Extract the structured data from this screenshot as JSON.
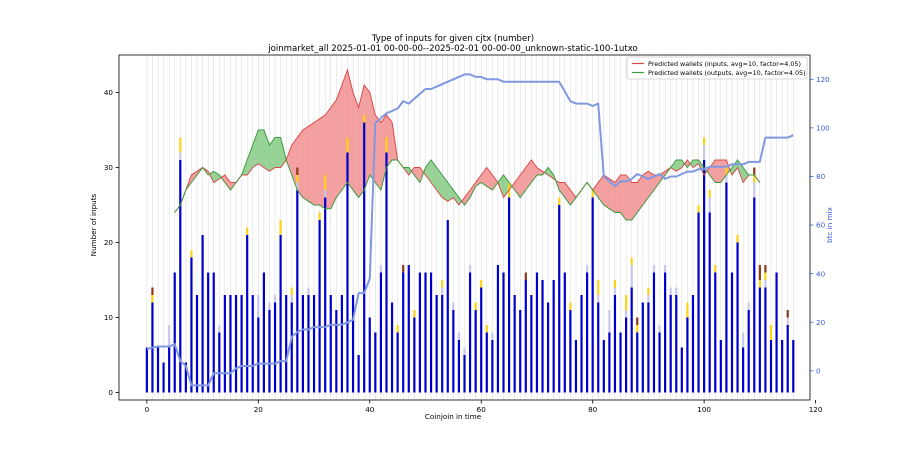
{
  "chart_data": {
    "type": "bar",
    "title": "Type of inputs for given cjtx (number)",
    "subtitle": "joinmarket_all 2025-01-01 00-00-00--2025-02-01 00-00-00_unknown-static-100-1utxo",
    "xlabel": "Coinjoin in time",
    "ylabel": "Number of inputs",
    "y2label": "btc in mix",
    "xlim": [
      -5,
      119
    ],
    "ylim": [
      -1,
      45
    ],
    "y2lim": [
      -12,
      130
    ],
    "xticks": [
      0,
      20,
      40,
      60,
      80,
      100,
      120
    ],
    "yticks": [
      0,
      10,
      20,
      30,
      40
    ],
    "y2ticks": [
      0,
      20,
      40,
      60,
      80,
      100,
      120
    ],
    "grid": "vertical",
    "legend_position": "top-right",
    "colors": {
      "base": "#0000cc",
      "light": "#c8c8ee",
      "yellow": "#ffd21a",
      "brown": "#8b3a1a",
      "inputs_line": "#d94a4a",
      "outputs_line": "#3a9a3a",
      "fill_red": "#f28080",
      "fill_green": "#74c474",
      "btc_line": "#7f98e0",
      "axis2": "#3a5bd9"
    },
    "series": [
      {
        "name": "",
        "values": [
          6,
          12,
          6,
          4,
          6,
          16,
          31,
          4,
          18,
          13,
          21,
          16,
          16,
          8,
          13,
          13,
          13,
          13,
          21,
          13,
          10,
          16,
          11,
          12,
          21,
          13,
          12,
          27,
          13,
          13,
          13,
          23,
          26,
          13,
          11,
          13,
          32,
          13,
          5,
          36,
          10,
          8,
          16,
          32,
          12,
          8,
          16,
          17,
          10,
          16,
          16,
          16,
          13,
          13,
          23,
          11,
          7,
          5,
          16,
          11,
          14,
          8,
          7,
          17,
          16,
          26,
          13,
          11,
          15,
          13,
          16,
          15,
          12,
          15,
          25,
          16,
          11,
          7,
          13,
          16,
          26,
          12,
          7,
          8,
          13,
          8,
          10,
          14,
          8,
          12,
          12,
          16,
          8,
          16,
          13,
          13,
          6,
          10,
          13,
          24,
          31,
          24,
          16,
          7,
          28,
          16,
          20,
          6,
          11,
          26,
          14,
          14,
          7,
          16,
          7,
          9,
          7
        ]
      },
      {
        "name": "",
        "values": [
          0,
          0,
          0,
          0,
          3,
          0,
          1,
          0,
          0,
          0,
          0,
          0,
          0,
          1,
          0,
          0,
          0,
          0,
          0,
          0,
          3,
          0,
          1,
          1,
          0,
          0,
          1,
          1,
          0,
          1,
          0,
          0,
          1,
          0,
          0,
          0,
          0,
          0,
          0,
          0,
          0,
          0,
          1,
          0,
          0,
          0,
          0,
          0,
          0,
          0,
          0,
          0,
          0,
          1,
          0,
          1,
          1,
          1,
          1,
          0,
          0,
          0,
          1,
          0,
          0,
          0,
          0,
          0,
          0,
          0,
          0,
          0,
          0,
          0,
          0,
          0,
          0,
          0,
          0,
          1,
          0,
          1,
          0,
          3,
          1,
          0,
          1,
          3,
          0,
          0,
          1,
          1,
          1,
          1,
          1,
          1,
          0,
          0,
          0,
          0,
          2,
          2,
          0,
          0,
          1,
          0,
          0,
          2,
          1,
          2,
          0,
          1,
          0,
          0,
          0,
          1,
          0
        ]
      },
      {
        "name": "",
        "values": [
          0,
          1,
          0,
          0,
          0,
          0,
          2,
          0,
          1,
          0,
          0,
          0,
          0,
          0,
          0,
          0,
          0,
          0,
          1,
          0,
          0,
          0,
          0,
          0,
          2,
          0,
          1,
          1,
          0,
          0,
          0,
          1,
          2,
          0,
          0,
          0,
          2,
          0,
          0,
          1,
          0,
          0,
          0,
          2,
          0,
          1,
          0,
          0,
          1,
          0,
          0,
          0,
          0,
          1,
          0,
          0,
          0,
          0,
          0,
          1,
          1,
          1,
          0,
          0,
          0,
          2,
          0,
          0,
          0,
          0,
          0,
          0,
          0,
          0,
          1,
          0,
          1,
          0,
          0,
          0,
          1,
          2,
          0,
          0,
          1,
          0,
          2,
          1,
          1,
          0,
          1,
          0,
          0,
          0,
          0,
          0,
          0,
          2,
          0,
          1,
          1,
          1,
          1,
          0,
          1,
          0,
          1,
          0,
          0,
          1,
          1,
          1,
          2,
          0,
          0,
          0,
          0
        ]
      },
      {
        "name": "",
        "values": [
          0,
          1,
          0,
          0,
          0,
          0,
          0,
          0,
          0,
          0,
          0,
          0,
          0,
          0,
          0,
          0,
          0,
          0,
          0,
          0,
          0,
          0,
          0,
          0,
          0,
          0,
          0,
          1,
          0,
          0,
          0,
          0,
          0,
          0,
          0,
          0,
          0,
          0,
          0,
          0,
          0,
          0,
          0,
          0,
          0,
          0,
          1,
          0,
          0,
          0,
          0,
          0,
          0,
          0,
          0,
          0,
          0,
          0,
          0,
          0,
          0,
          0,
          0,
          0,
          0,
          0,
          0,
          0,
          1,
          0,
          0,
          0,
          0,
          0,
          0,
          0,
          0,
          0,
          0,
          0,
          0,
          0,
          0,
          0,
          0,
          0,
          0,
          0,
          1,
          0,
          0,
          0,
          0,
          0,
          0,
          0,
          0,
          0,
          0,
          0,
          0,
          0,
          0,
          0,
          0,
          0,
          0,
          0,
          0,
          1,
          2,
          1,
          0,
          0,
          0,
          1,
          0
        ]
      },
      {
        "name": "Predicted wallets (inputs, avg=10, factor=4.05)",
        "x": [
          5,
          6,
          7,
          8,
          9,
          10,
          11,
          12,
          13,
          14,
          15,
          16,
          17,
          18,
          19,
          20,
          21,
          22,
          23,
          24,
          25,
          26,
          27,
          28,
          29,
          30,
          31,
          32,
          33,
          34,
          35,
          36,
          37,
          38,
          39,
          40,
          41,
          42,
          43,
          44,
          45,
          46,
          47,
          48,
          49,
          50,
          51,
          52,
          53,
          54,
          55,
          56,
          57,
          58,
          59,
          60,
          61,
          62,
          63,
          64,
          65,
          66,
          67,
          68,
          69,
          70,
          71,
          72,
          73,
          74,
          75,
          76,
          77,
          78,
          79,
          80,
          81,
          82,
          83,
          84,
          85,
          86,
          87,
          88,
          89,
          90,
          91,
          92,
          93,
          94,
          95,
          96,
          97,
          98,
          99,
          100,
          101,
          102,
          103,
          104,
          105,
          106,
          107,
          108,
          109,
          110
        ],
        "values": [
          24,
          25,
          27,
          29,
          29.5,
          30,
          29.5,
          28,
          28.5,
          29,
          28,
          28,
          29,
          29,
          30,
          30.5,
          30,
          29.5,
          30,
          30,
          31,
          33,
          34,
          35,
          35.5,
          36,
          36.5,
          37,
          38,
          39,
          41,
          43,
          40,
          38,
          41,
          40,
          37,
          36,
          37,
          36,
          31,
          30,
          29,
          30,
          30,
          29,
          28,
          27,
          26,
          25.5,
          26,
          25,
          26,
          27,
          28,
          29,
          30,
          29,
          28,
          26,
          27,
          28,
          29,
          30,
          31,
          30,
          29.5,
          29,
          28.5,
          28,
          28,
          27,
          26,
          27,
          28,
          27,
          28,
          29,
          28.5,
          28,
          29,
          29,
          28,
          28,
          29,
          29.5,
          29,
          29,
          29.5,
          30,
          29.5,
          30,
          31,
          30,
          30.5,
          29,
          30,
          31,
          31,
          31,
          29,
          30,
          28,
          29,
          29,
          28
        ]
      },
      {
        "name": "Predicted wallets (outputs, avg=10, factor=4.05)",
        "x": [
          5,
          6,
          7,
          8,
          9,
          10,
          11,
          12,
          13,
          14,
          15,
          16,
          17,
          18,
          19,
          20,
          21,
          22,
          23,
          24,
          25,
          26,
          27,
          28,
          29,
          30,
          31,
          32,
          33,
          34,
          35,
          36,
          37,
          38,
          39,
          40,
          41,
          42,
          43,
          44,
          45,
          46,
          47,
          48,
          49,
          50,
          51,
          52,
          53,
          54,
          55,
          56,
          57,
          58,
          59,
          60,
          61,
          62,
          63,
          64,
          65,
          66,
          67,
          68,
          69,
          70,
          71,
          72,
          73,
          74,
          75,
          76,
          77,
          78,
          79,
          80,
          81,
          82,
          83,
          84,
          85,
          86,
          87,
          88,
          89,
          90,
          91,
          92,
          93,
          94,
          95,
          96,
          97,
          98,
          99,
          100,
          101,
          102,
          103,
          104,
          105,
          106,
          107,
          108,
          109,
          110
        ],
        "values": [
          24,
          25,
          27,
          28,
          29,
          30,
          29,
          29.5,
          29,
          28,
          27,
          28,
          29,
          31,
          33,
          35,
          35,
          33,
          34,
          34,
          31,
          29,
          27,
          26,
          25.5,
          25,
          25,
          24.5,
          24.5,
          26,
          27,
          28,
          27,
          26,
          27,
          29,
          28,
          27,
          30,
          31,
          31,
          30,
          30,
          29,
          28,
          30,
          31,
          30,
          29,
          28,
          27,
          26,
          25,
          26,
          27.5,
          28,
          27.5,
          27,
          28,
          29,
          28,
          27,
          26,
          27,
          28,
          29,
          29,
          30,
          29,
          27,
          26,
          25,
          26,
          27,
          28,
          27,
          26,
          25,
          24.5,
          24,
          24,
          23,
          23,
          24,
          25,
          26,
          27,
          28,
          29,
          30,
          31,
          31,
          30,
          31,
          31,
          30,
          29,
          28,
          28,
          29,
          30,
          31,
          30,
          29,
          29,
          28
        ]
      },
      {
        "name": "",
        "x": [
          0,
          2,
          4,
          5,
          6,
          7,
          8,
          9,
          10,
          11,
          12,
          13,
          14,
          15,
          16,
          17,
          18,
          19,
          20,
          21,
          22,
          23,
          24,
          25,
          26,
          27,
          28,
          29,
          30,
          31,
          32,
          33,
          34,
          35,
          36,
          37,
          38,
          39,
          40,
          41,
          42,
          43,
          44,
          45,
          46,
          47,
          48,
          49,
          50,
          51,
          52,
          53,
          54,
          55,
          56,
          57,
          58,
          59,
          60,
          61,
          62,
          63,
          64,
          65,
          66,
          67,
          68,
          69,
          70,
          71,
          72,
          73,
          74,
          75,
          76,
          77,
          78,
          79,
          80,
          81,
          82,
          83,
          84,
          85,
          86,
          87,
          88,
          89,
          90,
          91,
          92,
          93,
          94,
          95,
          96,
          97,
          98,
          99,
          100,
          101,
          102,
          103,
          104,
          105,
          106,
          107,
          108,
          109,
          110,
          111,
          112,
          113,
          114,
          115,
          116
        ],
        "values": [
          9,
          10,
          10,
          11,
          4,
          2,
          -6,
          -6,
          -6,
          -6,
          -1,
          -1,
          -1,
          -1,
          1,
          2,
          2,
          2,
          3,
          3,
          3,
          3,
          4,
          4,
          14,
          16,
          17,
          17,
          18,
          18,
          18,
          19,
          19,
          19,
          20,
          21,
          32,
          32,
          38,
          102,
          104,
          106,
          107,
          108,
          111,
          110,
          112,
          114,
          116,
          116,
          117,
          118,
          119,
          120,
          121,
          122,
          122,
          121,
          121,
          120,
          120,
          120,
          119,
          119,
          119,
          119,
          119,
          119,
          119,
          119,
          119,
          119,
          119,
          115,
          111,
          110,
          110,
          110,
          109,
          110,
          80,
          78,
          76,
          78,
          78,
          79,
          81,
          80,
          79,
          80,
          81,
          79,
          80,
          80,
          81,
          82,
          82,
          83,
          83,
          84,
          84,
          84,
          84,
          85,
          85,
          85,
          86,
          86,
          86,
          96,
          96,
          96,
          96,
          96,
          97
        ]
      }
    ]
  }
}
